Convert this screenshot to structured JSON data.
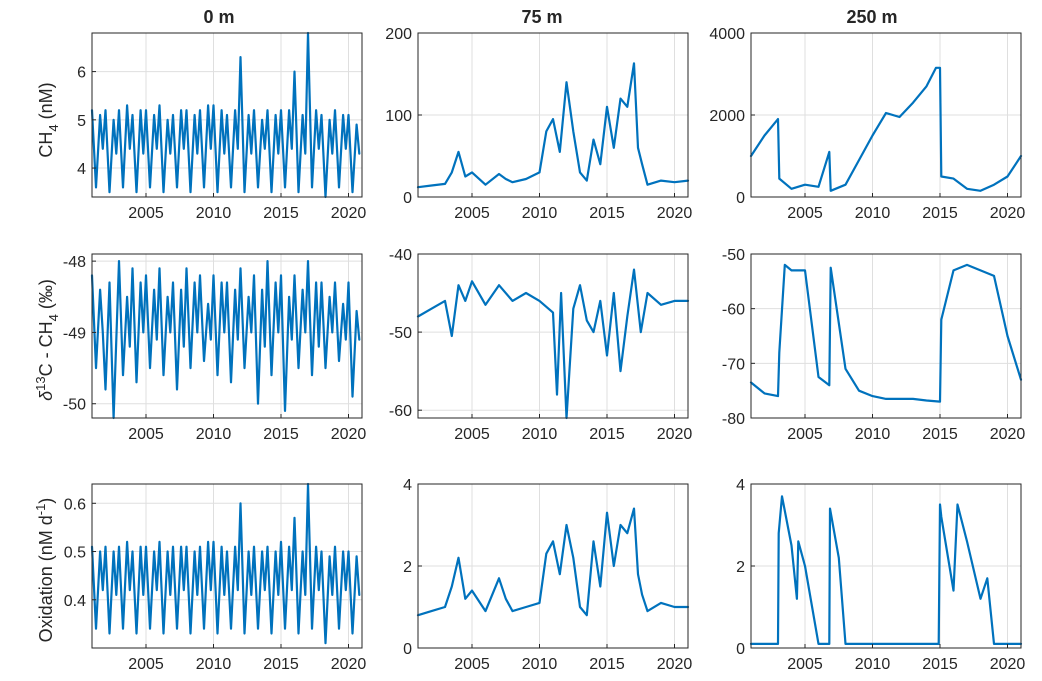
{
  "colors": {
    "series": "#0072BD",
    "grid": "#dfdfdf",
    "axis": "#262626"
  },
  "column_titles": [
    "0 m",
    "75 m",
    "250 m"
  ],
  "row_ylabels": [
    {
      "base": "CH",
      "sub": "4",
      "tail": " (nM)"
    },
    {
      "pre_sym": "δ",
      "sup": "13",
      "mid": "C - CH",
      "sub": "4",
      "tail": " (‰)"
    },
    {
      "base": "Oxidation (nM d",
      "sup": "-1",
      "tail": ")"
    }
  ],
  "chart_data": [
    {
      "type": "line",
      "id": "ch4_0m",
      "title": "0 m",
      "xlim": [
        2001,
        2021
      ],
      "ylim": [
        3.4,
        6.8
      ],
      "xticks": [
        2005,
        2010,
        2015,
        2020
      ],
      "yticks": [
        4,
        5,
        6
      ],
      "grid": true,
      "series": [
        {
          "x": [
            2001,
            2001.3,
            2001.6,
            2001.8,
            2002,
            2002.3,
            2002.6,
            2002.8,
            2003,
            2003.3,
            2003.6,
            2003.8,
            2004,
            2004.3,
            2004.6,
            2004.8,
            2005,
            2005.3,
            2005.6,
            2005.8,
            2006,
            2006.3,
            2006.6,
            2006.8,
            2007,
            2007.3,
            2007.6,
            2007.8,
            2008,
            2008.3,
            2008.6,
            2008.8,
            2009,
            2009.3,
            2009.6,
            2009.8,
            2010,
            2010.3,
            2010.6,
            2010.8,
            2011,
            2011.3,
            2011.6,
            2011.8,
            2012,
            2012.3,
            2012.6,
            2012.8,
            2013,
            2013.3,
            2013.6,
            2013.8,
            2014,
            2014.3,
            2014.6,
            2014.8,
            2015,
            2015.3,
            2015.6,
            2015.8,
            2016,
            2016.3,
            2016.6,
            2016.8,
            2017,
            2017.3,
            2017.6,
            2017.8,
            2018,
            2018.3,
            2018.6,
            2018.8,
            2019,
            2019.3,
            2019.6,
            2019.8,
            2020,
            2020.3,
            2020.6,
            2020.8
          ],
          "y": [
            5.2,
            3.6,
            5.1,
            4.4,
            5.2,
            3.5,
            5.0,
            4.3,
            5.2,
            3.6,
            5.3,
            4.4,
            5.1,
            3.5,
            5.2,
            4.3,
            5.2,
            3.6,
            5.1,
            4.4,
            5.3,
            3.5,
            5.0,
            4.3,
            5.1,
            3.6,
            5.2,
            4.4,
            5.2,
            3.5,
            5.1,
            4.3,
            5.2,
            3.6,
            5.3,
            4.4,
            5.3,
            3.5,
            5.2,
            4.3,
            5.1,
            3.6,
            5.2,
            4.4,
            6.3,
            3.5,
            5.1,
            4.3,
            5.2,
            3.6,
            5.0,
            4.4,
            5.2,
            3.5,
            5.1,
            4.3,
            5.2,
            3.6,
            5.2,
            4.4,
            6.0,
            3.5,
            5.1,
            4.3,
            6.8,
            3.6,
            5.2,
            4.4,
            5.1,
            3.4,
            5.0,
            4.3,
            5.2,
            3.6,
            5.1,
            4.4,
            5.1,
            3.5,
            4.9,
            4.3
          ]
        }
      ]
    },
    {
      "type": "line",
      "id": "ch4_75m",
      "title": "75 m",
      "xlim": [
        2001,
        2021
      ],
      "ylim": [
        0,
        200
      ],
      "xticks": [
        2005,
        2010,
        2015,
        2020
      ],
      "yticks": [
        0,
        100,
        200
      ],
      "grid": true,
      "series": [
        {
          "x": [
            2001,
            2002,
            2003,
            2003.5,
            2004,
            2004.5,
            2005,
            2006,
            2007,
            2007.5,
            2008,
            2009,
            2010,
            2010.5,
            2011,
            2011.5,
            2012,
            2012.5,
            2013,
            2013.5,
            2014,
            2014.5,
            2015,
            2015.5,
            2016,
            2016.5,
            2017,
            2017.3,
            2017.6,
            2018,
            2019,
            2020,
            2021
          ],
          "y": [
            12,
            14,
            16,
            30,
            55,
            25,
            30,
            15,
            28,
            22,
            18,
            22,
            30,
            80,
            95,
            55,
            140,
            80,
            30,
            20,
            70,
            40,
            110,
            60,
            120,
            110,
            163,
            60,
            40,
            15,
            20,
            18,
            20
          ]
        }
      ]
    },
    {
      "type": "line",
      "id": "ch4_250m",
      "title": "250 m",
      "xlim": [
        2001,
        2021
      ],
      "ylim": [
        0,
        4000
      ],
      "xticks": [
        2005,
        2010,
        2015,
        2020
      ],
      "yticks": [
        0,
        2000,
        4000
      ],
      "grid": true,
      "series": [
        {
          "x": [
            2001,
            2002,
            2003,
            2003.1,
            2004,
            2005,
            2006,
            2006.8,
            2006.9,
            2008,
            2009,
            2010,
            2011,
            2012,
            2013,
            2014,
            2014.7,
            2015,
            2015.1,
            2016,
            2017,
            2018,
            2019,
            2020,
            2021
          ],
          "y": [
            1000,
            1500,
            1900,
            450,
            200,
            300,
            250,
            1100,
            150,
            300,
            900,
            1500,
            2050,
            1950,
            2300,
            2700,
            3150,
            3150,
            500,
            450,
            200,
            150,
            300,
            500,
            1000
          ]
        }
      ]
    },
    {
      "type": "line",
      "id": "d13c_0m",
      "xlim": [
        2001,
        2021
      ],
      "ylim": [
        -50.2,
        -47.9
      ],
      "xticks": [
        2005,
        2010,
        2015,
        2020
      ],
      "yticks": [
        -50,
        -49,
        -48
      ],
      "grid": true,
      "series": [
        {
          "x": [
            2001,
            2001.3,
            2001.6,
            2001.8,
            2002,
            2002.3,
            2002.6,
            2002.8,
            2003,
            2003.3,
            2003.6,
            2003.8,
            2004,
            2004.3,
            2004.6,
            2004.8,
            2005,
            2005.3,
            2005.6,
            2005.8,
            2006,
            2006.3,
            2006.6,
            2006.8,
            2007,
            2007.3,
            2007.6,
            2007.8,
            2008,
            2008.3,
            2008.6,
            2008.8,
            2009,
            2009.3,
            2009.6,
            2009.8,
            2010,
            2010.3,
            2010.6,
            2010.8,
            2011,
            2011.3,
            2011.6,
            2011.8,
            2012,
            2012.3,
            2012.6,
            2012.8,
            2013,
            2013.3,
            2013.6,
            2013.8,
            2014,
            2014.3,
            2014.6,
            2014.8,
            2015,
            2015.3,
            2015.6,
            2015.8,
            2016,
            2016.3,
            2016.6,
            2016.8,
            2017,
            2017.3,
            2017.6,
            2017.8,
            2018,
            2018.3,
            2018.6,
            2018.8,
            2019,
            2019.3,
            2019.6,
            2019.8,
            2020,
            2020.3,
            2020.6,
            2020.8
          ],
          "y": [
            -48.2,
            -49.5,
            -48.4,
            -49.0,
            -49.8,
            -48.3,
            -50.2,
            -49.1,
            -48.0,
            -49.6,
            -48.5,
            -49.2,
            -48.1,
            -49.7,
            -48.3,
            -49.0,
            -48.2,
            -49.5,
            -48.4,
            -49.1,
            -48.1,
            -49.6,
            -48.5,
            -49.0,
            -48.3,
            -49.8,
            -48.4,
            -49.2,
            -48.1,
            -49.5,
            -48.3,
            -49.0,
            -48.2,
            -49.4,
            -48.6,
            -49.1,
            -48.2,
            -49.6,
            -48.3,
            -49.0,
            -48.3,
            -49.7,
            -48.4,
            -49.1,
            -48.1,
            -49.5,
            -48.5,
            -49.0,
            -48.2,
            -50.0,
            -48.4,
            -49.2,
            -48.0,
            -49.6,
            -48.3,
            -49.0,
            -48.2,
            -50.1,
            -48.5,
            -49.1,
            -48.2,
            -49.5,
            -48.4,
            -49.0,
            -48.0,
            -49.6,
            -48.3,
            -49.2,
            -48.3,
            -49.5,
            -48.5,
            -49.0,
            -48.3,
            -49.4,
            -48.6,
            -49.1,
            -48.3,
            -49.9,
            -48.7,
            -49.1
          ]
        }
      ]
    },
    {
      "type": "line",
      "id": "d13c_75m",
      "xlim": [
        2001,
        2021
      ],
      "ylim": [
        -61,
        -40
      ],
      "xticks": [
        2005,
        2010,
        2015,
        2020
      ],
      "yticks": [
        -60,
        -50,
        -40
      ],
      "grid": true,
      "series": [
        {
          "x": [
            2001,
            2002,
            2003,
            2003.5,
            2004,
            2004.5,
            2005,
            2006,
            2007,
            2008,
            2009,
            2010,
            2011,
            2011.3,
            2011.6,
            2012,
            2012.5,
            2013,
            2013.5,
            2014,
            2014.5,
            2015,
            2015.5,
            2016,
            2016.5,
            2017,
            2017.5,
            2018,
            2019,
            2020,
            2021
          ],
          "y": [
            -48,
            -47,
            -46,
            -50.5,
            -44,
            -46,
            -43.5,
            -46.5,
            -44,
            -46,
            -45,
            -46,
            -47.5,
            -58,
            -45,
            -61,
            -47,
            -44,
            -48.5,
            -50,
            -46,
            -53,
            -45,
            -55,
            -48,
            -42,
            -50,
            -45,
            -46.5,
            -46,
            -46
          ]
        }
      ]
    },
    {
      "type": "line",
      "id": "d13c_250m",
      "xlim": [
        2001,
        2021
      ],
      "ylim": [
        -80,
        -50
      ],
      "xticks": [
        2005,
        2010,
        2015,
        2020
      ],
      "yticks": [
        -80,
        -70,
        -60,
        -50
      ],
      "grid": true,
      "series": [
        {
          "x": [
            2001,
            2002,
            2003,
            2003.1,
            2003.5,
            2004,
            2005,
            2006,
            2006.8,
            2006.9,
            2008,
            2009,
            2010,
            2011,
            2012,
            2013,
            2014,
            2015,
            2015.1,
            2016,
            2017,
            2018,
            2019,
            2020,
            2021
          ],
          "y": [
            -73.5,
            -75.5,
            -76,
            -68,
            -52,
            -53,
            -53,
            -72.5,
            -74,
            -52.5,
            -71,
            -75,
            -76,
            -76.5,
            -76.5,
            -76.5,
            -76.8,
            -77,
            -62,
            -53,
            -52,
            -53,
            -54,
            -65,
            -73
          ]
        }
      ]
    },
    {
      "type": "line",
      "id": "ox_0m",
      "xlim": [
        2001,
        2021
      ],
      "ylim": [
        0.3,
        0.64
      ],
      "xticks": [
        2005,
        2010,
        2015,
        2020
      ],
      "yticks": [
        0.4,
        0.5,
        0.6
      ],
      "grid": true,
      "series": [
        {
          "x": [
            2001,
            2001.3,
            2001.6,
            2001.8,
            2002,
            2002.3,
            2002.6,
            2002.8,
            2003,
            2003.3,
            2003.6,
            2003.8,
            2004,
            2004.3,
            2004.6,
            2004.8,
            2005,
            2005.3,
            2005.6,
            2005.8,
            2006,
            2006.3,
            2006.6,
            2006.8,
            2007,
            2007.3,
            2007.6,
            2007.8,
            2008,
            2008.3,
            2008.6,
            2008.8,
            2009,
            2009.3,
            2009.6,
            2009.8,
            2010,
            2010.3,
            2010.6,
            2010.8,
            2011,
            2011.3,
            2011.6,
            2011.8,
            2012,
            2012.3,
            2012.6,
            2012.8,
            2013,
            2013.3,
            2013.6,
            2013.8,
            2014,
            2014.3,
            2014.6,
            2014.8,
            2015,
            2015.3,
            2015.6,
            2015.8,
            2016,
            2016.3,
            2016.6,
            2016.8,
            2017,
            2017.3,
            2017.6,
            2017.8,
            2018,
            2018.3,
            2018.6,
            2018.8,
            2019,
            2019.3,
            2019.6,
            2019.8,
            2020,
            2020.3,
            2020.6,
            2020.8
          ],
          "y": [
            0.51,
            0.34,
            0.5,
            0.42,
            0.51,
            0.33,
            0.5,
            0.41,
            0.51,
            0.34,
            0.52,
            0.42,
            0.5,
            0.33,
            0.51,
            0.41,
            0.51,
            0.34,
            0.5,
            0.42,
            0.52,
            0.33,
            0.5,
            0.41,
            0.51,
            0.34,
            0.51,
            0.42,
            0.51,
            0.33,
            0.5,
            0.41,
            0.51,
            0.34,
            0.52,
            0.42,
            0.52,
            0.33,
            0.51,
            0.41,
            0.5,
            0.34,
            0.51,
            0.42,
            0.6,
            0.33,
            0.5,
            0.41,
            0.51,
            0.34,
            0.5,
            0.42,
            0.51,
            0.33,
            0.5,
            0.41,
            0.52,
            0.34,
            0.51,
            0.42,
            0.57,
            0.33,
            0.5,
            0.41,
            0.64,
            0.34,
            0.51,
            0.42,
            0.5,
            0.31,
            0.49,
            0.41,
            0.51,
            0.34,
            0.5,
            0.42,
            0.5,
            0.33,
            0.49,
            0.41
          ]
        }
      ]
    },
    {
      "type": "line",
      "id": "ox_75m",
      "xlim": [
        2001,
        2021
      ],
      "ylim": [
        0,
        4
      ],
      "xticks": [
        2005,
        2010,
        2015,
        2020
      ],
      "yticks": [
        0,
        2,
        4
      ],
      "grid": true,
      "series": [
        {
          "x": [
            2001,
            2002,
            2003,
            2003.5,
            2004,
            2004.5,
            2005,
            2006,
            2007,
            2007.5,
            2008,
            2009,
            2010,
            2010.5,
            2011,
            2011.5,
            2012,
            2012.5,
            2013,
            2013.5,
            2014,
            2014.5,
            2015,
            2015.5,
            2016,
            2016.5,
            2017,
            2017.3,
            2017.6,
            2018,
            2019,
            2020,
            2021
          ],
          "y": [
            0.8,
            0.9,
            1.0,
            1.5,
            2.2,
            1.2,
            1.4,
            0.9,
            1.7,
            1.2,
            0.9,
            1.0,
            1.1,
            2.3,
            2.6,
            1.8,
            3.0,
            2.2,
            1.0,
            0.8,
            2.6,
            1.5,
            3.3,
            2.0,
            3.0,
            2.8,
            3.4,
            1.8,
            1.3,
            0.9,
            1.1,
            1.0,
            1.0
          ]
        }
      ]
    },
    {
      "type": "line",
      "id": "ox_250m",
      "xlim": [
        2001,
        2021
      ],
      "ylim": [
        0,
        4
      ],
      "xticks": [
        2005,
        2010,
        2015,
        2020
      ],
      "yticks": [
        0,
        2,
        4
      ],
      "grid": true,
      "series": [
        {
          "x": [
            2001,
            2002,
            2003,
            2003.05,
            2003.3,
            2004,
            2004.4,
            2004.5,
            2005,
            2006,
            2006.8,
            2006.85,
            2007.5,
            2008,
            2009,
            2010,
            2011,
            2012,
            2013,
            2014,
            2014.9,
            2015,
            2015.1,
            2016,
            2016.3,
            2017,
            2018,
            2018.5,
            2019,
            2020,
            2021
          ],
          "y": [
            0.1,
            0.1,
            0.1,
            2.8,
            3.7,
            2.5,
            1.2,
            2.6,
            2.0,
            0.1,
            0.1,
            3.4,
            2.2,
            0.1,
            0.1,
            0.1,
            0.1,
            0.1,
            0.1,
            0.1,
            0.1,
            3.5,
            3.2,
            1.4,
            3.5,
            2.6,
            1.2,
            1.7,
            0.1,
            0.1,
            0.1
          ]
        }
      ]
    }
  ]
}
